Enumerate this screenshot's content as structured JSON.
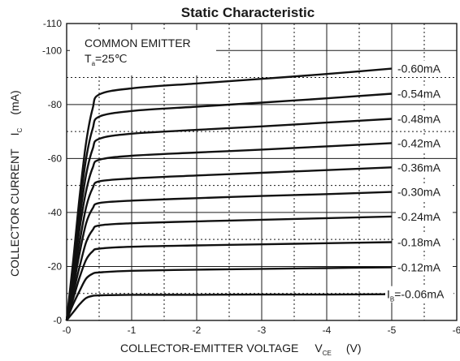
{
  "chart_data": {
    "type": "line",
    "title": "Static Characteristic",
    "annotation": {
      "line1": "COMMON EMITTER",
      "line2_main": "T",
      "line2_sub": "a",
      "line2_rest": "=25℃"
    },
    "xlabel": {
      "main": "COLLECTOR-EMITTER VOLTAGE",
      "symbol": "V",
      "subscript": "CE",
      "unit": "(V)"
    },
    "ylabel": {
      "main": "COLLECTOR CURRENT",
      "symbol": "I",
      "subscript": "C",
      "unit": "(mA)"
    },
    "xlim": [
      0,
      -6
    ],
    "ylim": [
      0,
      -110
    ],
    "x_ticks": [
      {
        "value": 0,
        "label": "-0"
      },
      {
        "value": -1,
        "label": "-1"
      },
      {
        "value": -2,
        "label": "-2"
      },
      {
        "value": -3,
        "label": "-3"
      },
      {
        "value": -4,
        "label": "-4"
      },
      {
        "value": -5,
        "label": "-5"
      },
      {
        "value": -6,
        "label": "-6"
      }
    ],
    "y_ticks": [
      {
        "value": 0,
        "label": "-0"
      },
      {
        "value": -20,
        "label": "-20"
      },
      {
        "value": -40,
        "label": "-40"
      },
      {
        "value": -60,
        "label": "-60"
      },
      {
        "value": -80,
        "label": "-80"
      },
      {
        "value": -100,
        "label": "-100"
      },
      {
        "value": -110,
        "label": "-110"
      }
    ],
    "grid": true,
    "series": [
      {
        "name": "-0.06mA",
        "prefix": "I",
        "prefix_sub": "B",
        "points": [
          [
            0,
            0
          ],
          [
            -0.1,
            -3
          ],
          [
            -0.2,
            -6
          ],
          [
            -0.3,
            -8.3
          ],
          [
            -0.4,
            -9.1
          ],
          [
            -0.5,
            -9.3
          ],
          [
            -1,
            -9.5
          ],
          [
            -2,
            -9.5
          ],
          [
            -3,
            -9.6
          ],
          [
            -4,
            -9.6
          ],
          [
            -5,
            -9.7
          ]
        ]
      },
      {
        "name": "-0.12mA",
        "points": [
          [
            0,
            0
          ],
          [
            -0.1,
            -6
          ],
          [
            -0.2,
            -11
          ],
          [
            -0.3,
            -15.5
          ],
          [
            -0.4,
            -17.3
          ],
          [
            -0.5,
            -17.8
          ],
          [
            -1,
            -18.4
          ],
          [
            -2,
            -18.8
          ],
          [
            -3,
            -19.1
          ],
          [
            -4,
            -19.4
          ],
          [
            -5,
            -19.7
          ]
        ]
      },
      {
        "name": "-0.18mA",
        "points": [
          [
            0,
            0
          ],
          [
            -0.1,
            -8
          ],
          [
            -0.2,
            -16
          ],
          [
            -0.3,
            -22.5
          ],
          [
            -0.4,
            -25.6
          ],
          [
            -0.5,
            -26.6
          ],
          [
            -1,
            -27.3
          ],
          [
            -2,
            -27.8
          ],
          [
            -3,
            -28.2
          ],
          [
            -4,
            -28.6
          ],
          [
            -5,
            -29
          ]
        ]
      },
      {
        "name": "-0.24mA",
        "points": [
          [
            0,
            0
          ],
          [
            -0.1,
            -10
          ],
          [
            -0.2,
            -20
          ],
          [
            -0.3,
            -29
          ],
          [
            -0.4,
            -33.5
          ],
          [
            -0.5,
            -35.2
          ],
          [
            -1,
            -36
          ],
          [
            -2,
            -36.7
          ],
          [
            -3,
            -37.3
          ],
          [
            -4,
            -37.9
          ],
          [
            -5,
            -38.5
          ]
        ]
      },
      {
        "name": "-0.30mA",
        "points": [
          [
            0,
            0
          ],
          [
            -0.1,
            -12
          ],
          [
            -0.2,
            -25
          ],
          [
            -0.3,
            -36
          ],
          [
            -0.4,
            -41.5
          ],
          [
            -0.5,
            -43.5
          ],
          [
            -1,
            -44.4
          ],
          [
            -2,
            -45.3
          ],
          [
            -3,
            -46.1
          ],
          [
            -4,
            -46.8
          ],
          [
            -5,
            -47.6
          ]
        ]
      },
      {
        "name": "-0.36mA",
        "points": [
          [
            0,
            0
          ],
          [
            -0.1,
            -14
          ],
          [
            -0.2,
            -29
          ],
          [
            -0.3,
            -42
          ],
          [
            -0.4,
            -49
          ],
          [
            -0.5,
            -51.5
          ],
          [
            -1,
            -52.6
          ],
          [
            -2,
            -53.7
          ],
          [
            -3,
            -54.7
          ],
          [
            -4,
            -55.7
          ],
          [
            -5,
            -56.7
          ]
        ]
      },
      {
        "name": "-0.42mA",
        "points": [
          [
            0,
            0
          ],
          [
            -0.1,
            -16
          ],
          [
            -0.2,
            -34
          ],
          [
            -0.3,
            -48
          ],
          [
            -0.4,
            -56.5
          ],
          [
            -0.5,
            -59.5
          ],
          [
            -1,
            -61
          ],
          [
            -2,
            -62.2
          ],
          [
            -3,
            -63.3
          ],
          [
            -4,
            -64.5
          ],
          [
            -5,
            -65.7
          ]
        ]
      },
      {
        "name": "-0.48mA",
        "points": [
          [
            0,
            0
          ],
          [
            -0.1,
            -18
          ],
          [
            -0.2,
            -38
          ],
          [
            -0.3,
            -54
          ],
          [
            -0.4,
            -63.5
          ],
          [
            -0.5,
            -67.3
          ],
          [
            -1,
            -69.2
          ],
          [
            -2,
            -70.6
          ],
          [
            -3,
            -71.9
          ],
          [
            -4,
            -73.3
          ],
          [
            -5,
            -74.7
          ]
        ]
      },
      {
        "name": "-0.54mA",
        "points": [
          [
            0,
            0
          ],
          [
            -0.1,
            -20
          ],
          [
            -0.2,
            -42
          ],
          [
            -0.3,
            -60
          ],
          [
            -0.4,
            -71
          ],
          [
            -0.5,
            -75.5
          ],
          [
            -1,
            -77.6
          ],
          [
            -2,
            -79.2
          ],
          [
            -3,
            -80.7
          ],
          [
            -4,
            -82.3
          ],
          [
            -5,
            -84
          ]
        ]
      },
      {
        "name": "-0.60mA",
        "points": [
          [
            0,
            0
          ],
          [
            -0.1,
            -22
          ],
          [
            -0.2,
            -46
          ],
          [
            -0.3,
            -66
          ],
          [
            -0.4,
            -78.5
          ],
          [
            -0.5,
            -83.7
          ],
          [
            -1,
            -86
          ],
          [
            -2,
            -87.8
          ],
          [
            -3,
            -89.5
          ],
          [
            -4,
            -91.3
          ],
          [
            -5,
            -93.3
          ]
        ]
      }
    ]
  }
}
